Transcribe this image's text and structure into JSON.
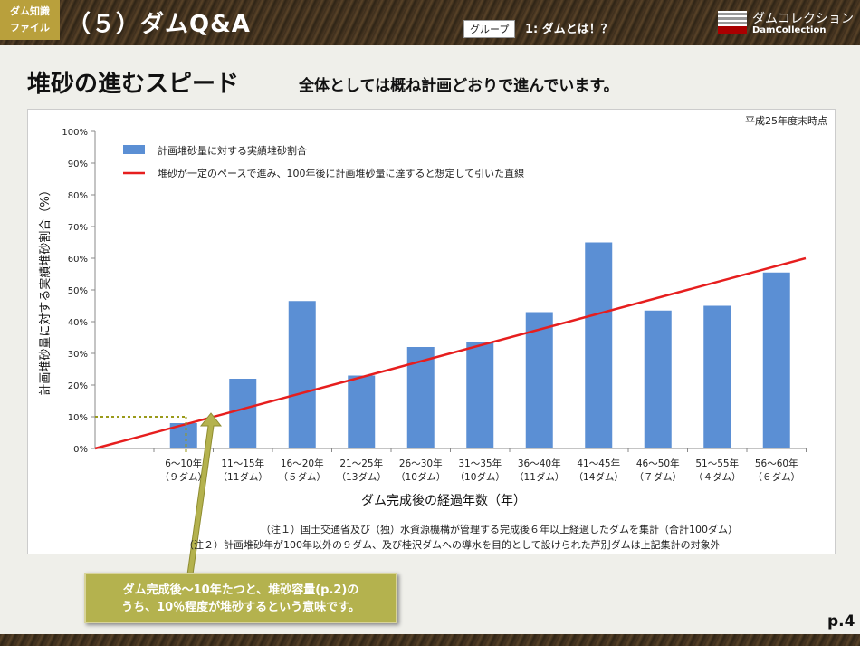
{
  "header": {
    "badge_line1": "ダム知識",
    "badge_line2": "ファイル",
    "title": "（５）ダムQ&A",
    "group_tag": "グループ",
    "group_name": "1: ダムとは！？",
    "logo_jp": "ダムコレクション",
    "logo_en": "DamCollection"
  },
  "subtitle": "堆砂の進むスピード",
  "tagline": "全体としては概ね計画どおりで進んでいます。",
  "as_of": "平成25年度末時点",
  "notes": [
    "（注１）国土交通省及び（独）水資源機構が管理する完成後６年以上経過したダムを集計（合計100ダム）",
    "（注２）計画堆砂年が100年以外の９ダム、及び桂沢ダムへの導水を目的として設けられた芦別ダムは上記集計の対象外"
  ],
  "callout_line1": "ダム完成後～10年たつと、堆砂容量(p.2)の",
  "callout_line2": "うち、10％程度が堆砂するという意味です。",
  "page_number": "p.4",
  "colors": {
    "bar": "#5b8fd4",
    "line": "#e61e1e",
    "guide": "#9a9a1a"
  },
  "chart_data": {
    "type": "bar",
    "categories": [
      [
        "6～10年",
        "（９ダム）"
      ],
      [
        "11～15年",
        "（11ダム）"
      ],
      [
        "16～20年",
        "（５ダム）"
      ],
      [
        "21～25年",
        "（13ダム）"
      ],
      [
        "26～30年",
        "（10ダム）"
      ],
      [
        "31～35年",
        "（10ダム）"
      ],
      [
        "36～40年",
        "（11ダム）"
      ],
      [
        "41～45年",
        "（14ダム）"
      ],
      [
        "46～50年",
        "（７ダム）"
      ],
      [
        "51～55年",
        "（４ダム）"
      ],
      [
        "56～60年",
        "（６ダム）"
      ]
    ],
    "series": [
      {
        "name": "計画堆砂量に対する実績堆砂割合",
        "values": [
          8,
          22,
          46.5,
          23,
          32,
          33.5,
          43,
          65,
          43.5,
          45,
          55.5
        ]
      }
    ],
    "reference_line": {
      "name": "堆砂が一定のペースで進み、100年後に計画堆砂量に達すると想定して引いた直線",
      "from": [
        0,
        0
      ],
      "to": [
        60,
        60
      ]
    },
    "xlabel": "ダム完成後の経過年数（年）",
    "ylabel": "計画堆砂量に対する実績堆砂割合（%）",
    "yticks": [
      "0%",
      "10%",
      "20%",
      "30%",
      "40%",
      "50%",
      "60%",
      "70%",
      "80%",
      "90%",
      "100%"
    ],
    "ylim": [
      0,
      100
    ],
    "legend_position": "top-left"
  }
}
